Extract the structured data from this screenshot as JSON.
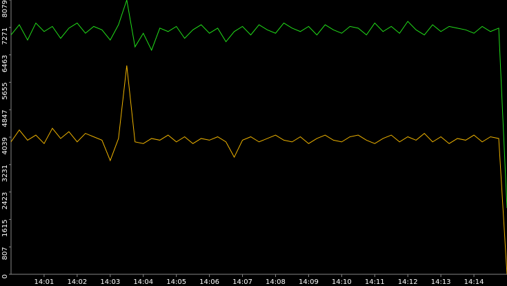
{
  "chart_data": {
    "type": "line",
    "background": "#000000",
    "x": [
      840,
      840.25,
      840.5,
      840.75,
      841,
      841.25,
      841.5,
      841.75,
      842,
      842.25,
      842.5,
      842.75,
      843,
      843.25,
      843.5,
      843.75,
      844,
      844.25,
      844.5,
      844.75,
      845,
      845.25,
      845.5,
      845.75,
      846,
      846.25,
      846.5,
      846.75,
      847,
      847.25,
      847.5,
      847.75,
      848,
      848.25,
      848.5,
      848.75,
      849,
      849.25,
      849.5,
      849.75,
      850,
      850.25,
      850.5,
      850.75,
      851,
      851.25,
      851.5,
      851.75,
      852,
      852.25,
      852.5,
      852.75,
      853,
      853.25,
      853.5,
      853.75,
      854,
      854.25,
      854.5,
      854.75,
      855
    ],
    "series": [
      {
        "color": "#22e01a",
        "values": [
          7050,
          7350,
          6900,
          7400,
          7150,
          7300,
          6950,
          7250,
          7400,
          7100,
          7300,
          7200,
          6900,
          7350,
          8079,
          6700,
          7100,
          6600,
          7250,
          7150,
          7300,
          6950,
          7200,
          7350,
          7100,
          7250,
          6850,
          7150,
          7300,
          7050,
          7350,
          7200,
          7100,
          7400,
          7250,
          7150,
          7300,
          7050,
          7350,
          7200,
          7100,
          7300,
          7250,
          7050,
          7400,
          7150,
          7300,
          7100,
          7450,
          7200,
          7050,
          7350,
          7150,
          7300,
          7250,
          7200,
          7100,
          7300,
          7150,
          7250,
          1950
        ]
      },
      {
        "color": "#f0b400",
        "values": [
          3900,
          4250,
          3950,
          4100,
          3850,
          4300,
          4000,
          4200,
          3900,
          4150,
          4050,
          3950,
          3350,
          4000,
          6150,
          3900,
          3850,
          4000,
          3950,
          4100,
          3900,
          4050,
          3850,
          4000,
          3950,
          4050,
          3900,
          3450,
          3950,
          4050,
          3900,
          4000,
          4100,
          3950,
          3900,
          4050,
          3850,
          4000,
          4100,
          3950,
          3900,
          4050,
          4100,
          3950,
          3850,
          4000,
          4100,
          3900,
          4050,
          3950,
          4150,
          3900,
          4050,
          3850,
          4000,
          3950,
          4100,
          3900,
          4050,
          4000,
          0
        ]
      }
    ],
    "xlim": [
      840,
      855
    ],
    "xticks": [
      {
        "value": 841,
        "label": "14:01"
      },
      {
        "value": 842,
        "label": "14:02"
      },
      {
        "value": 843,
        "label": "14:03"
      },
      {
        "value": 844,
        "label": "14:04"
      },
      {
        "value": 845,
        "label": "14:05"
      },
      {
        "value": 846,
        "label": "14:06"
      },
      {
        "value": 847,
        "label": "14:07"
      },
      {
        "value": 848,
        "label": "14:08"
      },
      {
        "value": 849,
        "label": "14:09"
      },
      {
        "value": 850,
        "label": "14:10"
      },
      {
        "value": 851,
        "label": "14:11"
      },
      {
        "value": 852,
        "label": "14:12"
      },
      {
        "value": 853,
        "label": "14:13"
      },
      {
        "value": 854,
        "label": "14:14"
      }
    ],
    "ylim": [
      0,
      8079
    ],
    "yticks": [
      0,
      807,
      1615,
      2423,
      3231,
      4039,
      4847,
      5655,
      6463,
      7271,
      8079
    ]
  }
}
